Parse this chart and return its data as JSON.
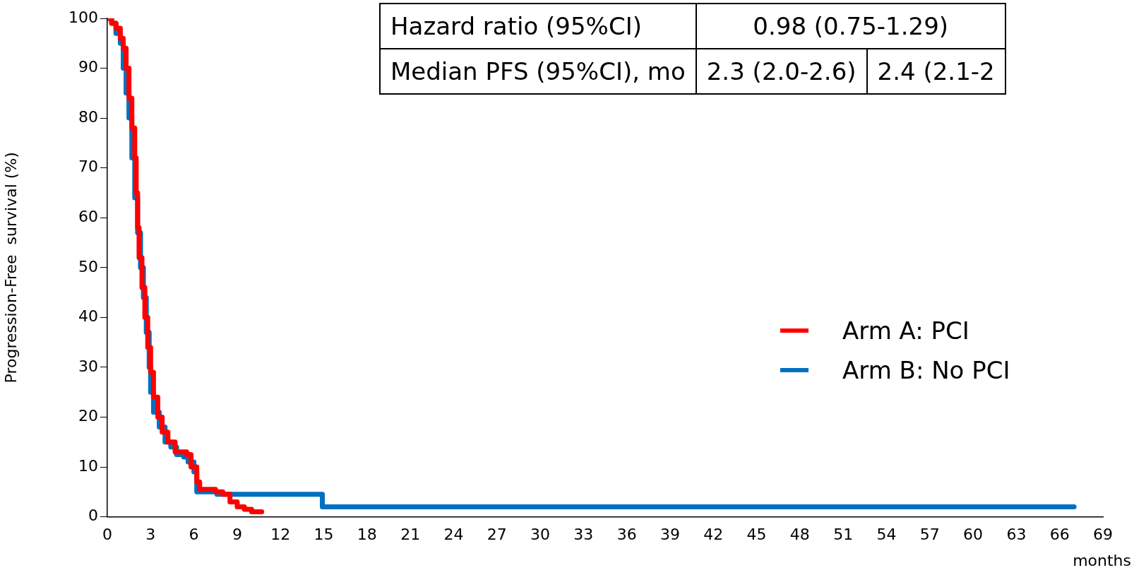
{
  "chart_data": {
    "type": "step",
    "xlabel": "months",
    "ylabel": "Progression-Free  survival (%)",
    "xlim": [
      0,
      69
    ],
    "xticks": [
      0,
      3,
      6,
      9,
      12,
      15,
      18,
      21,
      24,
      27,
      30,
      33,
      36,
      39,
      42,
      45,
      48,
      51,
      54,
      57,
      60,
      63,
      66,
      69
    ],
    "ylim": [
      0,
      100
    ],
    "yticks": [
      0,
      10,
      20,
      30,
      40,
      50,
      60,
      70,
      80,
      90,
      100
    ],
    "grid": false,
    "legend": "center right",
    "marker": "none",
    "line_style": "solid",
    "annotations": [
      "Hazard ratio (95%CI)",
      "0.98 (0.75-1.29)",
      "Median PFS (95%CI), mo",
      "2.3 (2.0-2.6)",
      "2.4 (2.1-2"
    ],
    "series": [
      {
        "name": "Arm A: PCI",
        "color": "#ff0000",
        "x": [
          0,
          0.3,
          0.6,
          0.9,
          1.1,
          1.3,
          1.5,
          1.7,
          1.9,
          2.0,
          2.1,
          2.2,
          2.4,
          2.6,
          2.8,
          3.0,
          3.2,
          3.5,
          3.8,
          4.2,
          4.7,
          5.5,
          5.8,
          6.2,
          6.4,
          7.5,
          8.0,
          8.5,
          9.0,
          9.5,
          10.0,
          10.7
        ],
        "values": [
          100,
          99,
          98,
          96,
          94,
          90,
          84,
          78,
          72,
          65,
          58,
          52,
          46,
          40,
          34,
          29,
          24,
          20,
          17,
          15,
          13,
          12.5,
          10,
          7,
          5.5,
          5,
          4.5,
          3,
          2,
          1.5,
          1,
          1
        ]
      },
      {
        "name": "Arm B: No PCI",
        "color": "#0070c0",
        "x": [
          0,
          0.3,
          0.6,
          0.9,
          1.1,
          1.3,
          1.5,
          1.7,
          1.9,
          2.1,
          2.3,
          2.5,
          2.7,
          2.9,
          3.0,
          3.2,
          3.6,
          4.0,
          4.4,
          4.8,
          5.3,
          5.6,
          6.0,
          6.2,
          7.6,
          14.9,
          67
        ],
        "values": [
          100,
          99,
          97,
          95,
          90,
          85,
          80,
          72,
          64,
          57,
          50,
          44,
          37,
          30,
          25,
          21,
          18,
          15,
          14,
          12.5,
          12,
          11,
          9,
          5,
          4.5,
          2,
          2
        ]
      }
    ]
  }
}
